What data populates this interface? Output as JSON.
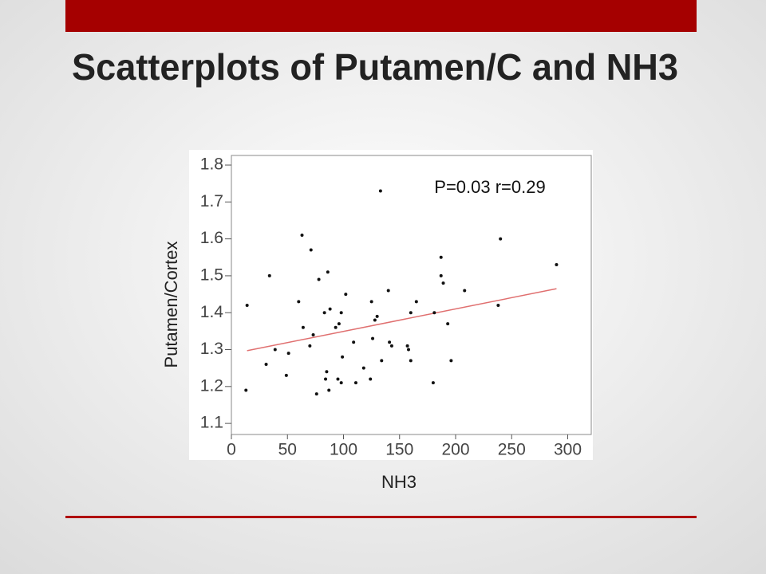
{
  "chart_data": {
    "type": "scatter",
    "title": "Scatterplots of Putamen/C and NH3",
    "annotation": "P=0.03  r=0.29",
    "x_label": "NH3",
    "y_label": "Putamen/Cortex",
    "xlim": [
      0,
      321
    ],
    "xticks": [
      0,
      50,
      100,
      150,
      200,
      250,
      300
    ],
    "ylim": [
      1.07,
      1.826
    ],
    "yticks": [
      1.1,
      1.2,
      1.3,
      1.4,
      1.5,
      1.6,
      1.7,
      1.8
    ],
    "color": "#111111",
    "x": [
      14,
      13,
      34,
      39,
      31,
      49,
      51,
      60,
      63,
      64,
      71,
      70,
      73,
      76,
      78,
      83,
      86,
      88,
      85,
      84,
      87,
      93,
      96,
      98,
      95,
      98,
      99,
      102,
      109,
      111,
      118,
      124,
      125,
      126,
      128,
      130,
      133,
      134,
      140,
      141,
      143,
      157,
      160,
      158,
      160,
      165,
      180,
      181,
      187,
      187,
      189,
      193,
      196,
      208,
      238,
      240,
      290
    ],
    "values": [
      1.42,
      1.19,
      1.5,
      1.3,
      1.26,
      1.23,
      1.29,
      1.43,
      1.61,
      1.36,
      1.57,
      1.31,
      1.34,
      1.18,
      1.49,
      1.4,
      1.51,
      1.41,
      1.24,
      1.22,
      1.19,
      1.36,
      1.37,
      1.4,
      1.22,
      1.21,
      1.28,
      1.45,
      1.32,
      1.21,
      1.25,
      1.22,
      1.43,
      1.33,
      1.38,
      1.39,
      1.73,
      1.27,
      1.46,
      1.32,
      1.31,
      1.31,
      1.27,
      1.3,
      1.4,
      1.43,
      1.21,
      1.4,
      1.55,
      1.5,
      1.48,
      1.37,
      1.27,
      1.46,
      1.42,
      1.6,
      1.53
    ],
    "trend_line": {
      "x": [
        14,
        290
      ],
      "values": [
        1.297,
        1.465
      ],
      "color": "#e07070"
    }
  }
}
